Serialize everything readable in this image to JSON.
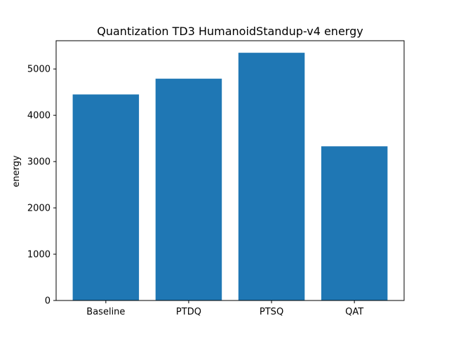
{
  "chart_data": {
    "type": "bar",
    "title": "Quantization TD3 HumanoidStandup-v4 energy",
    "xlabel": "",
    "ylabel": "energy",
    "categories": [
      "Baseline",
      "PTDQ",
      "PTSQ",
      "QAT"
    ],
    "values": [
      4450,
      4790,
      5350,
      3330
    ],
    "ylim": [
      0,
      5610
    ],
    "yticks": [
      0,
      1000,
      2000,
      3000,
      4000,
      5000
    ],
    "bar_color": "#1f77b4",
    "grid": false,
    "legend": "none"
  }
}
